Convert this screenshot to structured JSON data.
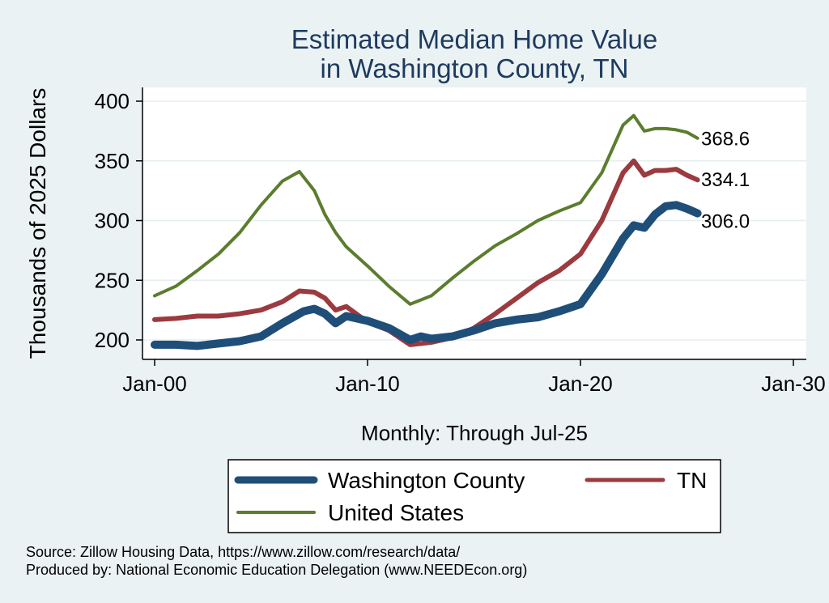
{
  "colors": {
    "background": "#eaf2f3",
    "plot_background": "#ffffff",
    "washington": "#1f4e79",
    "tn": "#9b3a3f",
    "us": "#5b7d2e",
    "title": "#1e3a5f"
  },
  "footnotes": {
    "source": "Source: Zillow Housing Data, https://www.zillow.com/research/data/",
    "produced": "Produced by: National Economic Education Delegation (www.NEEDEcon.org)"
  },
  "chart_data": {
    "type": "line",
    "title": [
      "Estimated Median Home Value",
      "in Washington County, TN"
    ],
    "xlabel": "Monthly: Through Jul-25",
    "ylabel": "Thousands of 2025 Dollars",
    "ylim": [
      190,
      405
    ],
    "xlim": [
      2000.0,
      2030.0
    ],
    "yticks": [
      200,
      250,
      300,
      350,
      400
    ],
    "ytick_labels": [
      "200",
      "250",
      "300",
      "350",
      "400"
    ],
    "xticks": [
      2000,
      2010,
      2020,
      2030
    ],
    "xtick_labels": [
      "Jan-00",
      "Jan-10",
      "Jan-20",
      "Jan-30"
    ],
    "grid": true,
    "legend_position": "bottom",
    "series": [
      {
        "name": "Washington County",
        "color": "#1f4e79",
        "end_label": "306.0",
        "x": [
          2000.0,
          2001.0,
          2002.0,
          2003.0,
          2004.0,
          2005.0,
          2006.0,
          2007.0,
          2007.5,
          2008.0,
          2008.5,
          2009.0,
          2010.0,
          2011.0,
          2012.0,
          2012.5,
          2013.0,
          2014.0,
          2015.0,
          2016.0,
          2017.0,
          2018.0,
          2019.0,
          2020.0,
          2021.0,
          2022.0,
          2022.5,
          2023.0,
          2023.5,
          2024.0,
          2024.5,
          2025.0,
          2025.5
        ],
        "y": [
          196,
          196,
          195,
          197,
          199,
          203,
          214,
          224,
          226,
          222,
          214,
          220,
          216,
          210,
          200,
          203,
          201,
          203,
          208,
          214,
          217,
          219,
          224,
          230,
          255,
          285,
          296,
          294,
          305,
          312,
          313,
          310,
          306
        ]
      },
      {
        "name": "TN",
        "color": "#9b3a3f",
        "end_label": "334.1",
        "x": [
          2000.0,
          2001.0,
          2002.0,
          2003.0,
          2004.0,
          2005.0,
          2006.0,
          2006.8,
          2007.5,
          2008.0,
          2008.5,
          2009.0,
          2010.0,
          2011.0,
          2012.0,
          2013.0,
          2014.0,
          2015.0,
          2016.0,
          2017.0,
          2018.0,
          2019.0,
          2020.0,
          2021.0,
          2022.0,
          2022.5,
          2023.0,
          2023.5,
          2024.0,
          2024.5,
          2025.0,
          2025.5
        ],
        "y": [
          217,
          218,
          220,
          220,
          222,
          225,
          232,
          241,
          240,
          235,
          225,
          228,
          215,
          208,
          196,
          198,
          202,
          210,
          222,
          235,
          248,
          258,
          272,
          300,
          340,
          350,
          338,
          342,
          342,
          343,
          338,
          334
        ]
      },
      {
        "name": "United States",
        "color": "#5b7d2e",
        "end_label": "368.6",
        "x": [
          2000.0,
          2001.0,
          2002.0,
          2003.0,
          2004.0,
          2005.0,
          2006.0,
          2006.8,
          2007.5,
          2008.0,
          2008.5,
          2009.0,
          2010.0,
          2011.0,
          2012.0,
          2013.0,
          2014.0,
          2015.0,
          2016.0,
          2017.0,
          2018.0,
          2019.0,
          2020.0,
          2021.0,
          2022.0,
          2022.5,
          2023.0,
          2023.5,
          2024.0,
          2024.5,
          2025.0,
          2025.5
        ],
        "y": [
          237,
          245,
          258,
          272,
          290,
          313,
          333,
          341,
          325,
          305,
          290,
          278,
          262,
          245,
          230,
          237,
          252,
          266,
          279,
          289,
          300,
          308,
          315,
          340,
          380,
          388,
          375,
          377,
          377,
          376,
          374,
          369
        ]
      }
    ]
  }
}
